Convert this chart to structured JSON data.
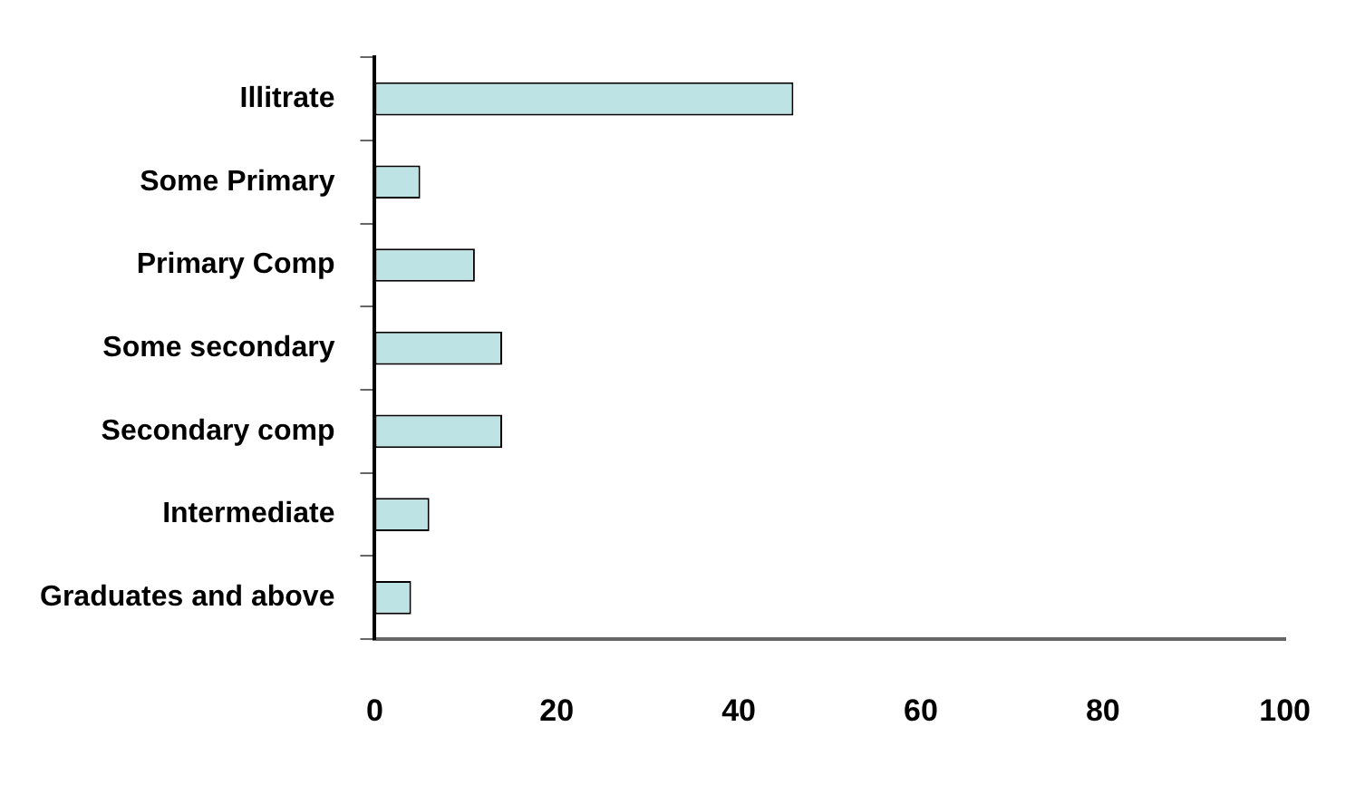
{
  "chart_data": {
    "type": "bar",
    "orientation": "horizontal",
    "categories": [
      "Illitrate",
      "Some Primary",
      "Primary Comp",
      "Some secondary",
      "Secondary comp",
      "Intermediate",
      "Graduates and above"
    ],
    "values": [
      46,
      5,
      11,
      14,
      14,
      6,
      4
    ],
    "color": "#bde3e5",
    "xlim": [
      0,
      100
    ],
    "xticks": [
      0,
      20,
      40,
      60,
      80,
      100
    ],
    "grid": false,
    "legend": false
  }
}
